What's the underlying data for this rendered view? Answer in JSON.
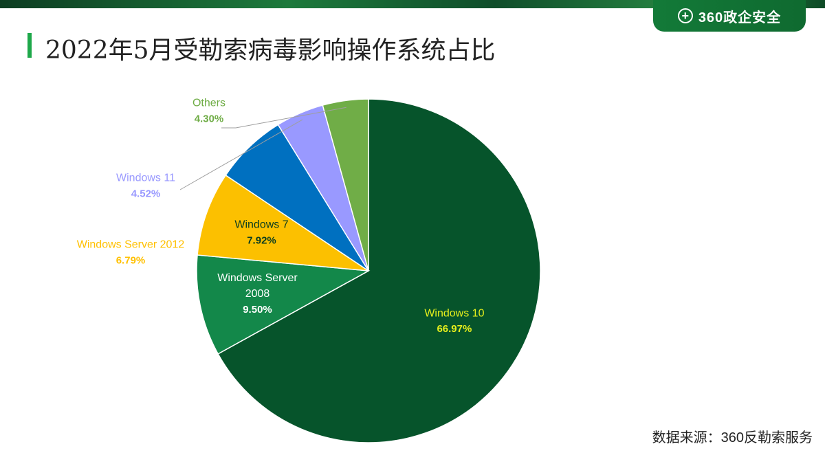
{
  "header": {
    "title": "2022年5月受勒索病毒影响操作系统占比",
    "logo_text": "360政企安全",
    "logo_mark": "+"
  },
  "footer": {
    "source": "数据来源：360反勒索服务"
  },
  "chart_data": {
    "type": "pie",
    "title": "2022年5月受勒索病毒影响操作系统占比",
    "start_angle_deg": 0,
    "direction": "clockwise",
    "slices": [
      {
        "label_lines": [
          "Windows 10"
        ],
        "value": 66.97,
        "value_label": "66.97%",
        "color": "#06542b",
        "label_color": "#e6ef1c",
        "label_position": "inside"
      },
      {
        "label_lines": [
          "Windows Server",
          "2008"
        ],
        "value": 9.5,
        "value_label": "9.50%",
        "color": "#13884a",
        "label_color": "#ffffff",
        "label_position": "inside"
      },
      {
        "label_lines": [
          "Windows 7"
        ],
        "value": 7.92,
        "value_label": "7.92%",
        "color": "#fcc000",
        "label_color": "#0b3d1f",
        "label_position": "inside"
      },
      {
        "label_lines": [
          "Windows Server 2012"
        ],
        "value": 6.79,
        "value_label": "6.79%",
        "color": "#0070c0",
        "label_color": "#ffc000",
        "label_position": "outside"
      },
      {
        "label_lines": [
          "Windows 11"
        ],
        "value": 4.52,
        "value_label": "4.52%",
        "color": "#9999ff",
        "label_color": "#9999ff",
        "label_position": "outside"
      },
      {
        "label_lines": [
          "Others"
        ],
        "value": 4.3,
        "value_label": "4.30%",
        "color": "#70ad47",
        "label_color": "#70ad47",
        "label_position": "outside"
      }
    ]
  }
}
